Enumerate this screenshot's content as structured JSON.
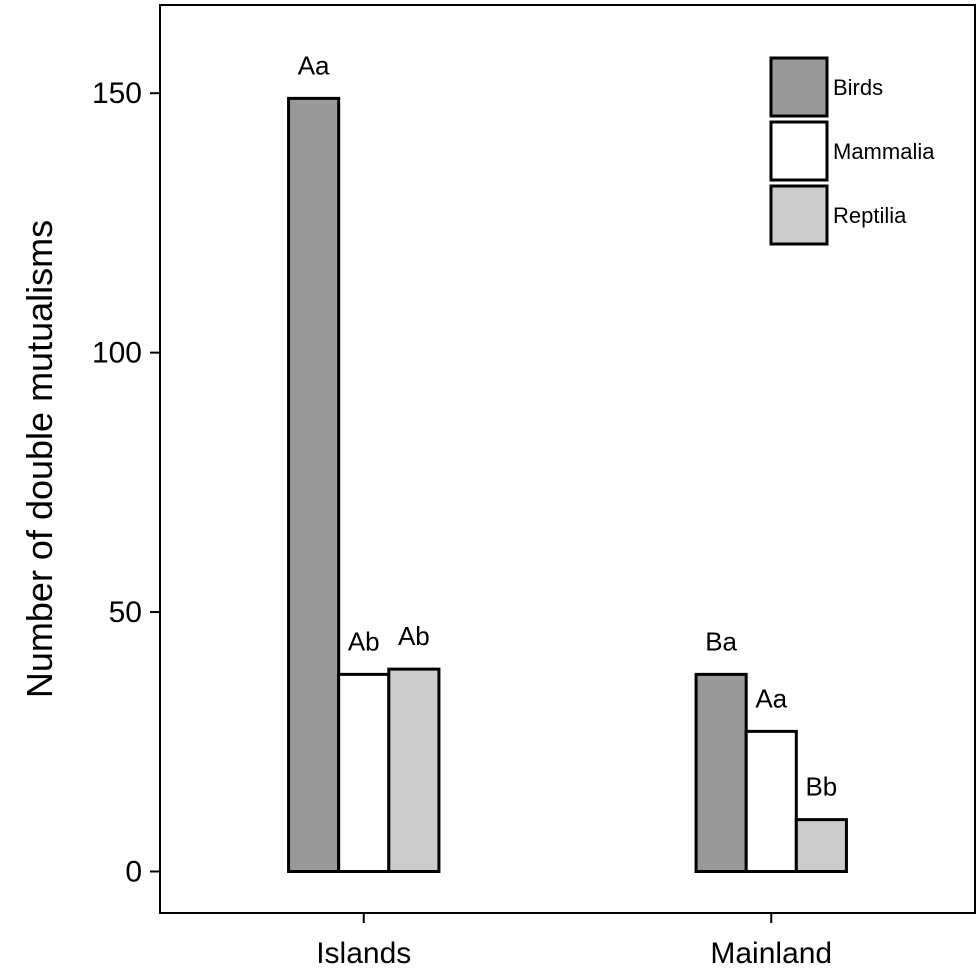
{
  "chart_data": {
    "type": "bar",
    "title": "",
    "xlabel": "",
    "ylabel": "Number of double mutualisms",
    "categories": [
      "Islands",
      "Mainland"
    ],
    "ylim": [
      -8,
      167
    ],
    "yticks": [
      0,
      50,
      100,
      150
    ],
    "grid": false,
    "legend_position": "top-right",
    "series": [
      {
        "name": "Birds",
        "color": "#999999",
        "values": [
          149,
          38
        ],
        "labels": [
          "Aa",
          "Ba"
        ]
      },
      {
        "name": "Mammalia",
        "color": "#ffffff",
        "values": [
          38,
          27
        ],
        "labels": [
          "Ab",
          "Aa"
        ]
      },
      {
        "name": "Reptilia",
        "color": "#cccccc",
        "values": [
          39,
          10
        ],
        "labels": [
          "Ab",
          "Bb"
        ]
      }
    ]
  }
}
